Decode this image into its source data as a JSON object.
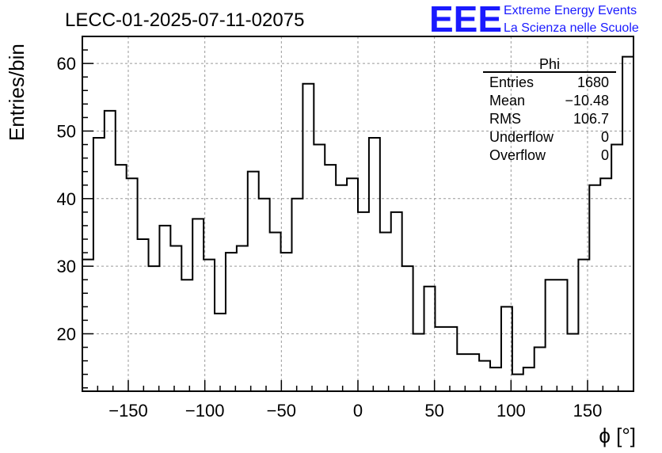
{
  "chart_data": {
    "type": "histogram",
    "title": "LECC-01-2025-07-11-02075",
    "xlabel": "ϕ [°]",
    "ylabel": "Entries/bin",
    "xlim": [
      -180,
      180
    ],
    "ylim": [
      11.5,
      64
    ],
    "bin_width": 7.2,
    "x_ticks": [
      -150,
      -100,
      -50,
      0,
      50,
      100,
      150
    ],
    "x_tick_labels": [
      "−150",
      "−100",
      "−50",
      "0",
      "50",
      "100",
      "150"
    ],
    "y_ticks": [
      20,
      30,
      40,
      50,
      60
    ],
    "y_tick_labels": [
      "20",
      "30",
      "40",
      "50",
      "60"
    ],
    "grid": true,
    "values": [
      31,
      49,
      53,
      45,
      43,
      34,
      30,
      36,
      33,
      28,
      37,
      31,
      23,
      32,
      33,
      44,
      40,
      35,
      32,
      40,
      57,
      48,
      45,
      42,
      43,
      38,
      49,
      35,
      38,
      30,
      20,
      27,
      21,
      21,
      17,
      17,
      16,
      15,
      24,
      14,
      15,
      18,
      28,
      28,
      20,
      31,
      42,
      43,
      48,
      61
    ],
    "stats": {
      "name": "Phi",
      "rows": [
        {
          "label": "Entries",
          "value": "1680"
        },
        {
          "label": "Mean",
          "value": "−10.48"
        },
        {
          "label": "RMS",
          "value": "106.7"
        },
        {
          "label": "Underflow",
          "value": "0"
        },
        {
          "label": "Overflow",
          "value": "0"
        }
      ]
    },
    "logo": {
      "mark": "EEE",
      "line1": "Extreme Energy Events",
      "line2": "La Scienza nelle Scuole",
      "color": "#1a1aff"
    },
    "line_color": "#000000",
    "grid_color": "#999999"
  }
}
